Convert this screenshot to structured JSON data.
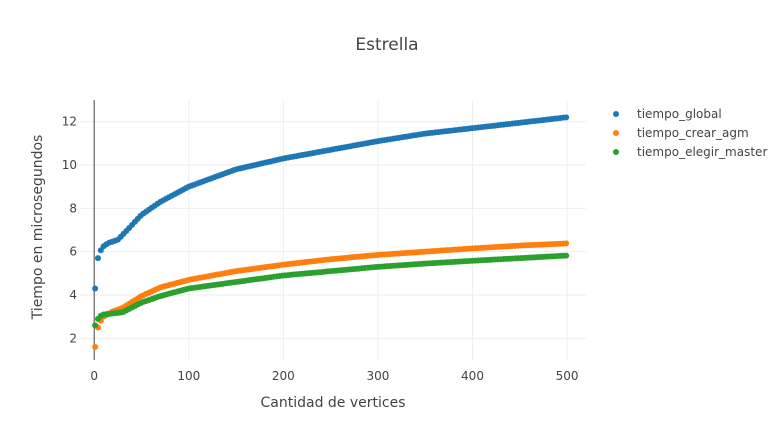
{
  "chart_data": {
    "type": "scatter",
    "title": "Estrella",
    "xlabel": "Cantidad de vertices",
    "ylabel": "Tiempo en microsegundos",
    "xlim": [
      -15,
      520
    ],
    "ylim": [
      1.0,
      13.0
    ],
    "xticks": [
      0,
      100,
      200,
      300,
      400,
      500
    ],
    "yticks": [
      2,
      4,
      6,
      8,
      10,
      12
    ],
    "grid": true,
    "legend_position": "top-right",
    "x_range": {
      "start": 1,
      "end": 499,
      "step": 3
    },
    "series": [
      {
        "name": "tiempo_global",
        "color": "#1f77b4",
        "anchors": [
          [
            1,
            4.3
          ],
          [
            2,
            5.3
          ],
          [
            4,
            5.7
          ],
          [
            6,
            6.0
          ],
          [
            10,
            6.25
          ],
          [
            15,
            6.4
          ],
          [
            25,
            6.55
          ],
          [
            35,
            7.0
          ],
          [
            50,
            7.7
          ],
          [
            70,
            8.3
          ],
          [
            100,
            9.0
          ],
          [
            150,
            9.8
          ],
          [
            200,
            10.3
          ],
          [
            250,
            10.7
          ],
          [
            300,
            11.1
          ],
          [
            350,
            11.45
          ],
          [
            400,
            11.7
          ],
          [
            450,
            11.95
          ],
          [
            499,
            12.2
          ]
        ]
      },
      {
        "name": "tiempo_crear_agm",
        "color": "#ff7f0e",
        "anchors": [
          [
            1,
            1.6
          ],
          [
            3,
            2.3
          ],
          [
            5,
            2.7
          ],
          [
            10,
            3.0
          ],
          [
            20,
            3.25
          ],
          [
            30,
            3.4
          ],
          [
            50,
            3.95
          ],
          [
            70,
            4.35
          ],
          [
            100,
            4.7
          ],
          [
            150,
            5.1
          ],
          [
            200,
            5.4
          ],
          [
            250,
            5.65
          ],
          [
            300,
            5.85
          ],
          [
            350,
            6.0
          ],
          [
            400,
            6.15
          ],
          [
            450,
            6.28
          ],
          [
            499,
            6.38
          ]
        ]
      },
      {
        "name": "tiempo_elegir_master",
        "color": "#2ca02c",
        "anchors": [
          [
            1,
            2.6
          ],
          [
            3,
            2.8
          ],
          [
            5,
            3.0
          ],
          [
            10,
            3.1
          ],
          [
            20,
            3.15
          ],
          [
            30,
            3.2
          ],
          [
            50,
            3.65
          ],
          [
            70,
            3.95
          ],
          [
            100,
            4.3
          ],
          [
            150,
            4.6
          ],
          [
            200,
            4.9
          ],
          [
            250,
            5.1
          ],
          [
            300,
            5.3
          ],
          [
            350,
            5.45
          ],
          [
            400,
            5.58
          ],
          [
            450,
            5.7
          ],
          [
            499,
            5.82
          ]
        ]
      }
    ]
  }
}
